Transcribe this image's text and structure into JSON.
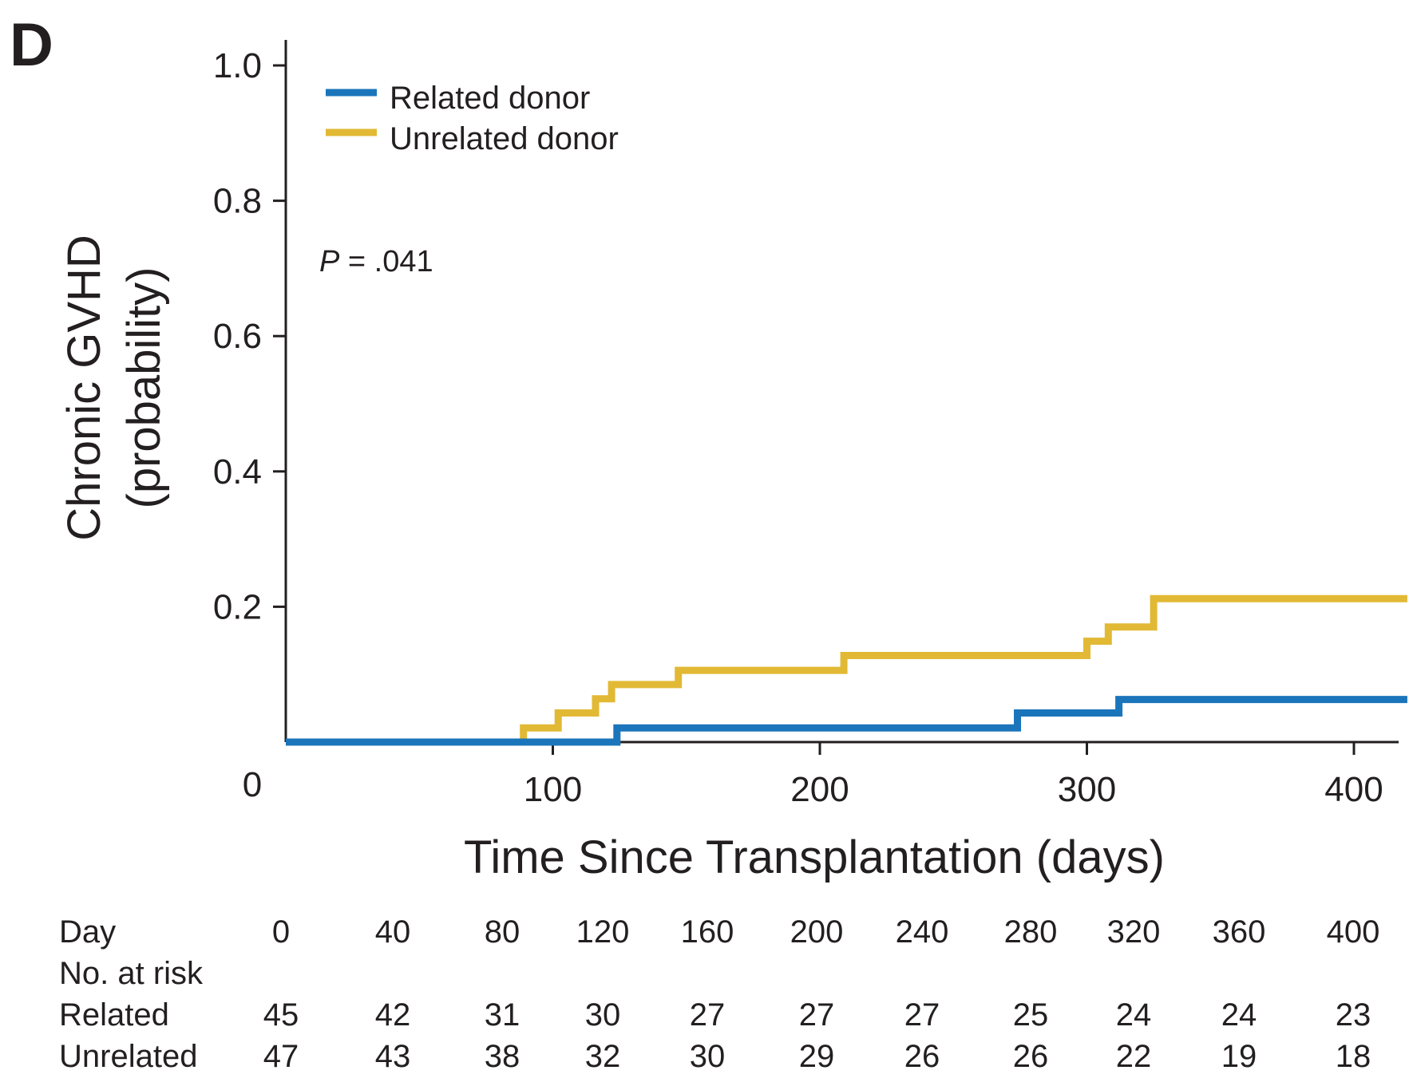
{
  "panel_label": "D",
  "colors": {
    "related": "#1b75bb",
    "unrelated": "#e2b935",
    "axis": "#231f20"
  },
  "chart_data": {
    "type": "line",
    "step": true,
    "xlabel": "Time Since Transplantation (days)",
    "ylabel_line1": "Chronic GVHD",
    "ylabel_line2": "(probability)",
    "xlim": [
      0,
      415
    ],
    "ylim": [
      0,
      1.0
    ],
    "x_zero_label": "0",
    "x_ticks": [
      100,
      200,
      300,
      400
    ],
    "x_tick_labels": [
      "100",
      "200",
      "300",
      "400"
    ],
    "y_ticks": [
      0.2,
      0.4,
      0.6,
      0.8,
      1.0
    ],
    "y_tick_labels": [
      "0.2",
      "0.4",
      "0.6",
      "0.8",
      "1.0"
    ],
    "legend_position": "top-left",
    "annotation": {
      "italic": "P",
      "rest": " = .041"
    },
    "series": [
      {
        "name": "Related donor",
        "color": "#1b75bb",
        "x": [
          0,
          124,
          124,
          274,
          274,
          312,
          312,
          420
        ],
        "y": [
          0,
          0,
          0.021,
          0.021,
          0.043,
          0.043,
          0.063,
          0.063
        ]
      },
      {
        "name": "Unrelated donor",
        "color": "#e2b935",
        "x": [
          0,
          89,
          89,
          102,
          102,
          116,
          116,
          122,
          122,
          147,
          147,
          209,
          209,
          300,
          300,
          308,
          308,
          325,
          325,
          420
        ],
        "y": [
          0,
          0,
          0.021,
          0.021,
          0.043,
          0.043,
          0.064,
          0.064,
          0.085,
          0.085,
          0.106,
          0.106,
          0.128,
          0.128,
          0.149,
          0.149,
          0.17,
          0.17,
          0.212,
          0.212
        ]
      }
    ]
  },
  "risk_table": {
    "day_label": "Day",
    "header_label": "No. at risk",
    "days": [
      "0",
      "40",
      "80",
      "120",
      "160",
      "200",
      "240",
      "280",
      "320",
      "360",
      "400"
    ],
    "rows": [
      {
        "label": "Related",
        "values": [
          "45",
          "42",
          "31",
          "30",
          "27",
          "27",
          "27",
          "25",
          "24",
          "24",
          "23"
        ]
      },
      {
        "label": "Unrelated",
        "values": [
          "47",
          "43",
          "38",
          "32",
          "30",
          "29",
          "26",
          "26",
          "22",
          "19",
          "18"
        ]
      }
    ]
  }
}
